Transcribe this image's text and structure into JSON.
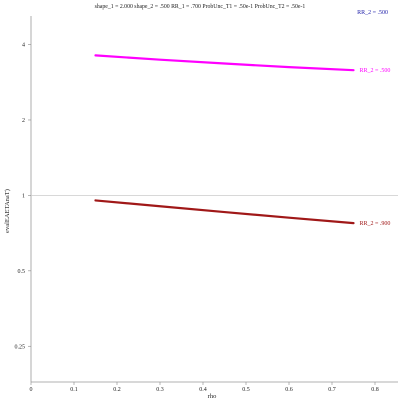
{
  "chart_data": {
    "type": "line",
    "title": "shape_1 = 2.000  shape_2 = .500  RR_1 = .700  ProbUnc_T1 = .50e-1  ProbUnc_T2 = .50e-1",
    "xlabel": "rho",
    "ylabel": "evalEAETAnaT)",
    "x_scale": "linear",
    "y_scale": "log",
    "xlim": [
      0,
      0.85
    ],
    "ylim": [
      0.18,
      5.2
    ],
    "x_ticks": [
      0,
      0.1,
      0.2,
      0.3,
      0.4,
      0.5,
      0.6,
      0.7,
      0.8
    ],
    "x_tick_labels": [
      "0",
      "0.1",
      "0.2",
      "0.3",
      "0.4",
      "0.5",
      "0.6",
      "0.7",
      "0.8"
    ],
    "y_ticks": [
      0.25,
      0.5,
      1,
      2,
      4
    ],
    "y_tick_labels": [
      "0.25",
      "0.5",
      "1",
      "2",
      "4"
    ],
    "reference_line_y": 1,
    "legend": {
      "text": "RR_2 = .500",
      "color": "#2222aa",
      "placement": "top-right"
    },
    "series": [
      {
        "name": "RR_2 = .500",
        "color": "#ff00ff",
        "x": [
          0.15,
          0.3,
          0.45,
          0.6,
          0.75
        ],
        "y": [
          3.62,
          3.48,
          3.36,
          3.25,
          3.16
        ]
      },
      {
        "name": "RR_2 = .900",
        "color": "#a01818",
        "x": [
          0.15,
          0.3,
          0.45,
          0.6,
          0.75
        ],
        "y": [
          0.955,
          0.905,
          0.858,
          0.815,
          0.775
        ]
      }
    ]
  }
}
